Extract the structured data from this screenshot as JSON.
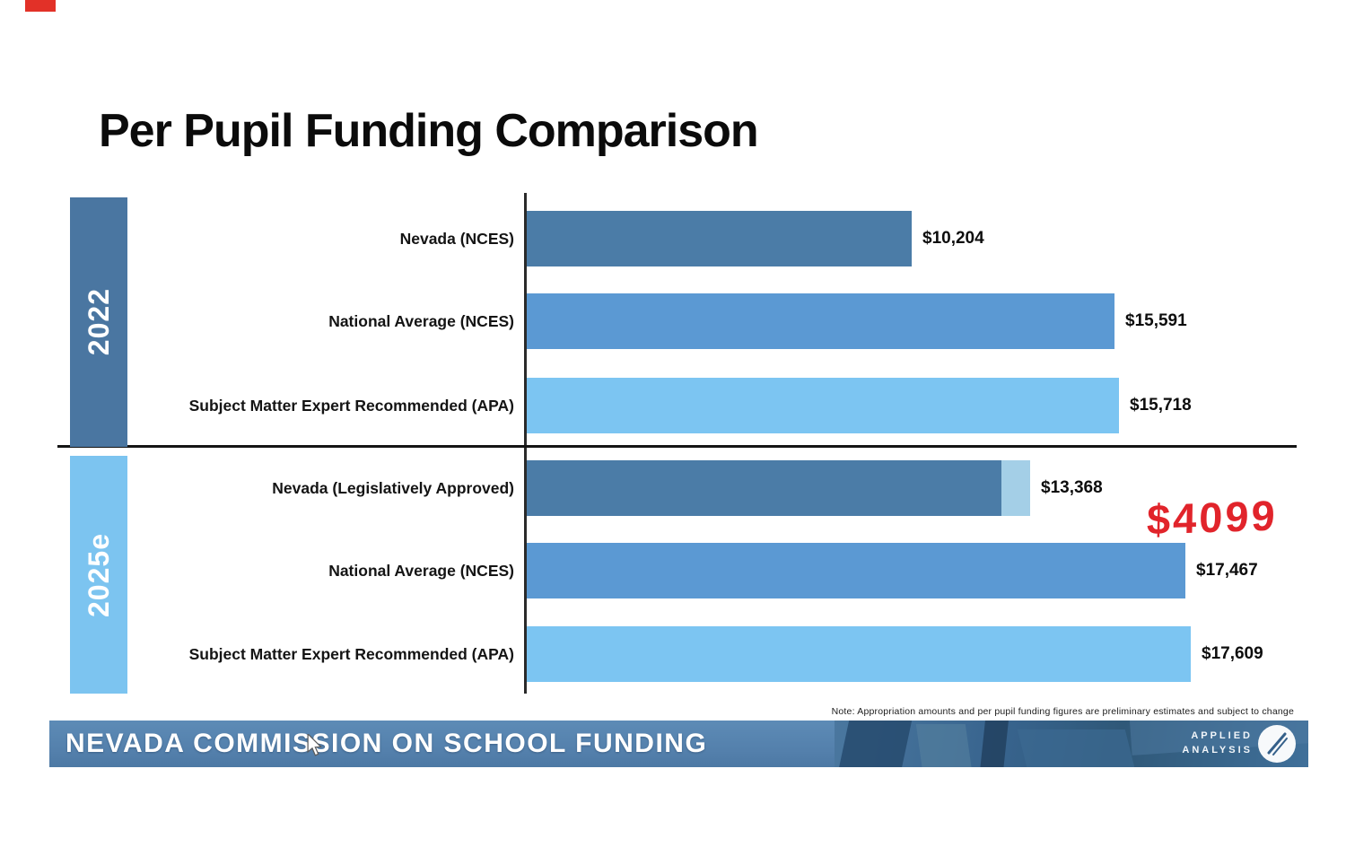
{
  "page": {
    "title": "Per Pupil Funding Comparison"
  },
  "chart_data": {
    "type": "bar",
    "orientation": "horizontal",
    "title": "Per Pupil Funding Comparison",
    "x_axis": {
      "unit": "dollars per pupil",
      "ticks_visible": false
    },
    "groups": [
      {
        "label": "2022",
        "band_color": "#4a76a1",
        "rows": [
          {
            "category": "Nevada (NCES)",
            "value": 10204,
            "display": "$10,204",
            "color": "#4b7ca7"
          },
          {
            "category": "National Average (NCES)",
            "value": 15591,
            "display": "$15,591",
            "color": "#5b99d3"
          },
          {
            "category": "Subject Matter Expert Recommended (APA)",
            "value": 15718,
            "display": "$15,718",
            "color": "#7cc5f2"
          }
        ]
      },
      {
        "label": "2025e",
        "band_color": "#7cc4f0",
        "rows": [
          {
            "category": "Nevada (Legislatively Approved)",
            "value": 13368,
            "display": "$13,368",
            "color": "#4b7ca7",
            "cap_value": 760,
            "cap_color": "#a4cfe7"
          },
          {
            "category": "National Average (NCES)",
            "value": 17467,
            "display": "$17,467",
            "color": "#5b99d3"
          },
          {
            "category": "Subject Matter Expert Recommended (APA)",
            "value": 17609,
            "display": "$17,609",
            "color": "#7cc5f2"
          }
        ]
      }
    ],
    "annotation": {
      "text": "$4099",
      "color": "#e1242b",
      "meaning": "handwritten gap note near Nevada 2025e bar"
    }
  },
  "note": "Note: Appropriation amounts and per pupil funding figures are preliminary estimates and subject to change",
  "footer": {
    "title": "NEVADA COMMISSION ON SCHOOL FUNDING",
    "logo_line1": "APPLIED",
    "logo_line2": "ANALYSIS"
  },
  "decorations": {
    "red_mark_color": "#e23128"
  }
}
